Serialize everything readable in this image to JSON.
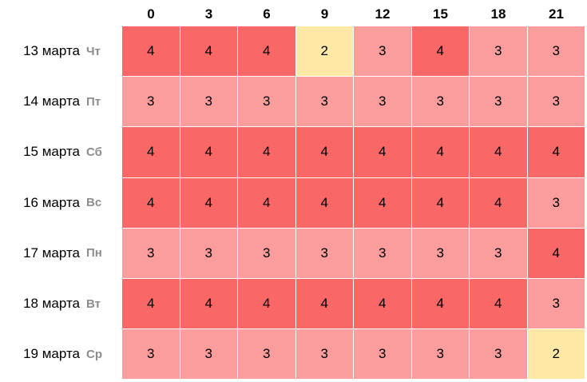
{
  "chart_data": {
    "type": "heatmap",
    "title": "",
    "xlabel": "",
    "ylabel": "",
    "columns": [
      "0",
      "3",
      "6",
      "9",
      "12",
      "15",
      "18",
      "21"
    ],
    "rows": [
      {
        "date": "13 марта",
        "day": "Чт",
        "values": [
          4,
          4,
          4,
          2,
          3,
          4,
          3,
          3
        ]
      },
      {
        "date": "14 марта",
        "day": "Пт",
        "values": [
          3,
          3,
          3,
          3,
          3,
          3,
          3,
          3
        ]
      },
      {
        "date": "15 марта",
        "day": "Сб",
        "values": [
          4,
          4,
          4,
          4,
          4,
          4,
          4,
          4
        ]
      },
      {
        "date": "16 марта",
        "day": "Вс",
        "values": [
          4,
          4,
          4,
          4,
          4,
          4,
          4,
          3
        ]
      },
      {
        "date": "17 марта",
        "day": "Пн",
        "values": [
          3,
          3,
          3,
          3,
          3,
          3,
          3,
          4
        ]
      },
      {
        "date": "18 марта",
        "day": "Вт",
        "values": [
          4,
          4,
          4,
          4,
          4,
          4,
          4,
          3
        ]
      },
      {
        "date": "19 марта",
        "day": "Ср",
        "values": [
          3,
          3,
          3,
          3,
          3,
          3,
          3,
          2
        ]
      }
    ],
    "colors": {
      "2": "#fde8a6",
      "3": "#fb9d9d",
      "4": "#f96767"
    },
    "text_color": "#000000",
    "day_color": "#8c8c8c"
  }
}
